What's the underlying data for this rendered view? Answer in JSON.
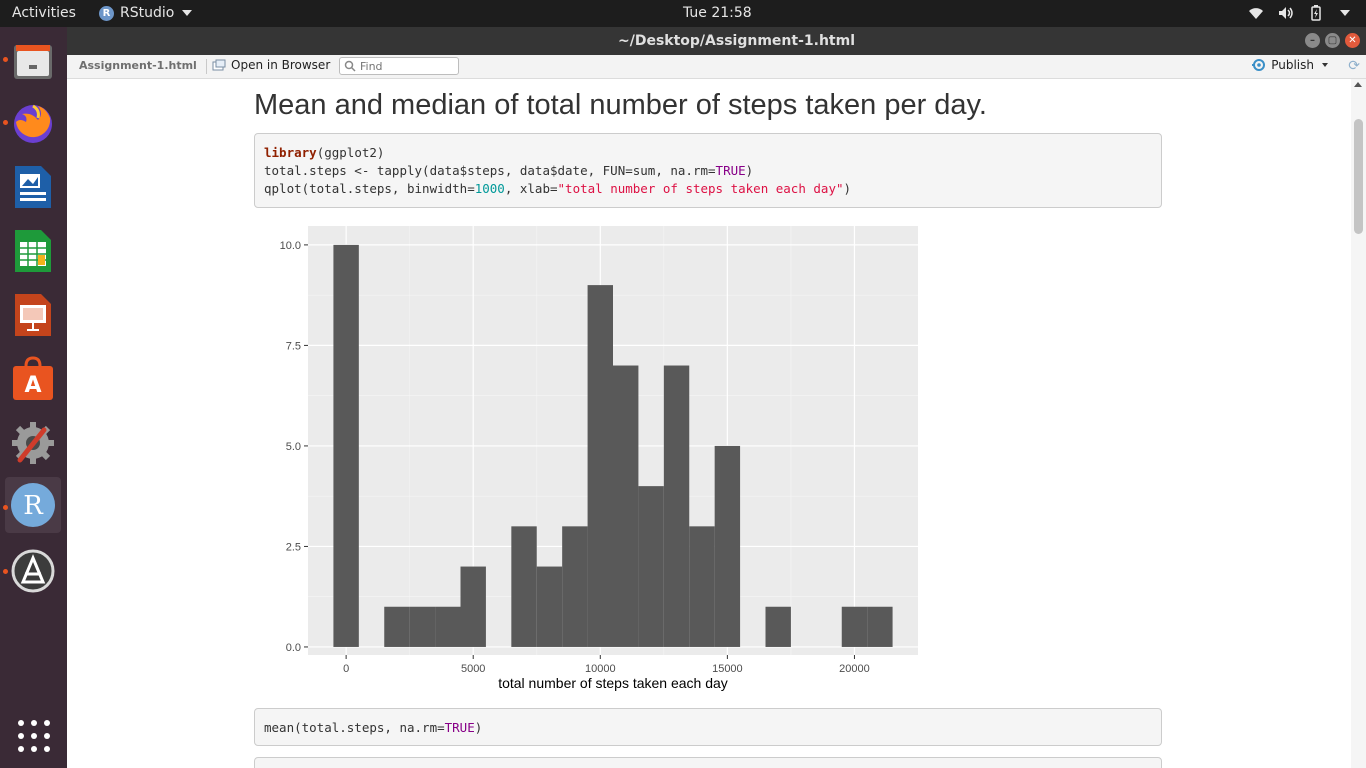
{
  "topbar": {
    "activities": "Activities",
    "app_name": "RStudio",
    "clock": "Tue 21:58"
  },
  "window": {
    "title": "~/Desktop/Assignment-1.html"
  },
  "toolbar": {
    "filename": "Assignment-1.html",
    "open_browser": "Open in Browser",
    "find_placeholder": "Find",
    "publish": "Publish"
  },
  "doc": {
    "heading": "Mean and median of total number of steps taken per day.",
    "code1": {
      "line1_kw": "library",
      "line1_rest": "(ggplot2)",
      "line2_a": "total.steps <- tapply(data$steps, data$date, FUN=sum, na.rm=",
      "line2_const": "TRUE",
      "line2_b": ")",
      "line3_a": "qplot(total.steps, binwidth=",
      "line3_num": "1000",
      "line3_b": ", xlab=",
      "line3_str": "\"total number of steps taken each day\"",
      "line3_c": ")"
    },
    "code2": {
      "a": "mean(total.steps, na.rm=",
      "const": "TRUE",
      "b": ")"
    }
  },
  "chart_data": {
    "type": "bar",
    "xlabel": "total number of steps taken each day",
    "ylabel": "",
    "bar_color": "#595959",
    "panel_bg": "#ebebeb",
    "xlim": [
      -1500,
      22500
    ],
    "ylim": [
      -0.2,
      10.47
    ],
    "x_ticks": [
      0,
      5000,
      10000,
      15000,
      20000
    ],
    "y_ticks": [
      0,
      2.5,
      5,
      7.5,
      10
    ],
    "x_tick_labels": [
      "0",
      "5000",
      "10000",
      "15000",
      "20000"
    ],
    "y_tick_labels": [
      "0.0",
      "2.5",
      "5.0",
      "7.5",
      "10.0"
    ],
    "bins": [
      {
        "x": 0,
        "count": 10
      },
      {
        "x": 2000,
        "count": 1
      },
      {
        "x": 3000,
        "count": 1
      },
      {
        "x": 4000,
        "count": 1
      },
      {
        "x": 5000,
        "count": 2
      },
      {
        "x": 7000,
        "count": 3
      },
      {
        "x": 8000,
        "count": 2
      },
      {
        "x": 9000,
        "count": 3
      },
      {
        "x": 10000,
        "count": 9
      },
      {
        "x": 11000,
        "count": 7
      },
      {
        "x": 12000,
        "count": 4
      },
      {
        "x": 13000,
        "count": 7
      },
      {
        "x": 14000,
        "count": 3
      },
      {
        "x": 15000,
        "count": 5
      },
      {
        "x": 17000,
        "count": 1
      },
      {
        "x": 20000,
        "count": 1
      },
      {
        "x": 21000,
        "count": 1
      }
    ],
    "binwidth": 1000
  }
}
